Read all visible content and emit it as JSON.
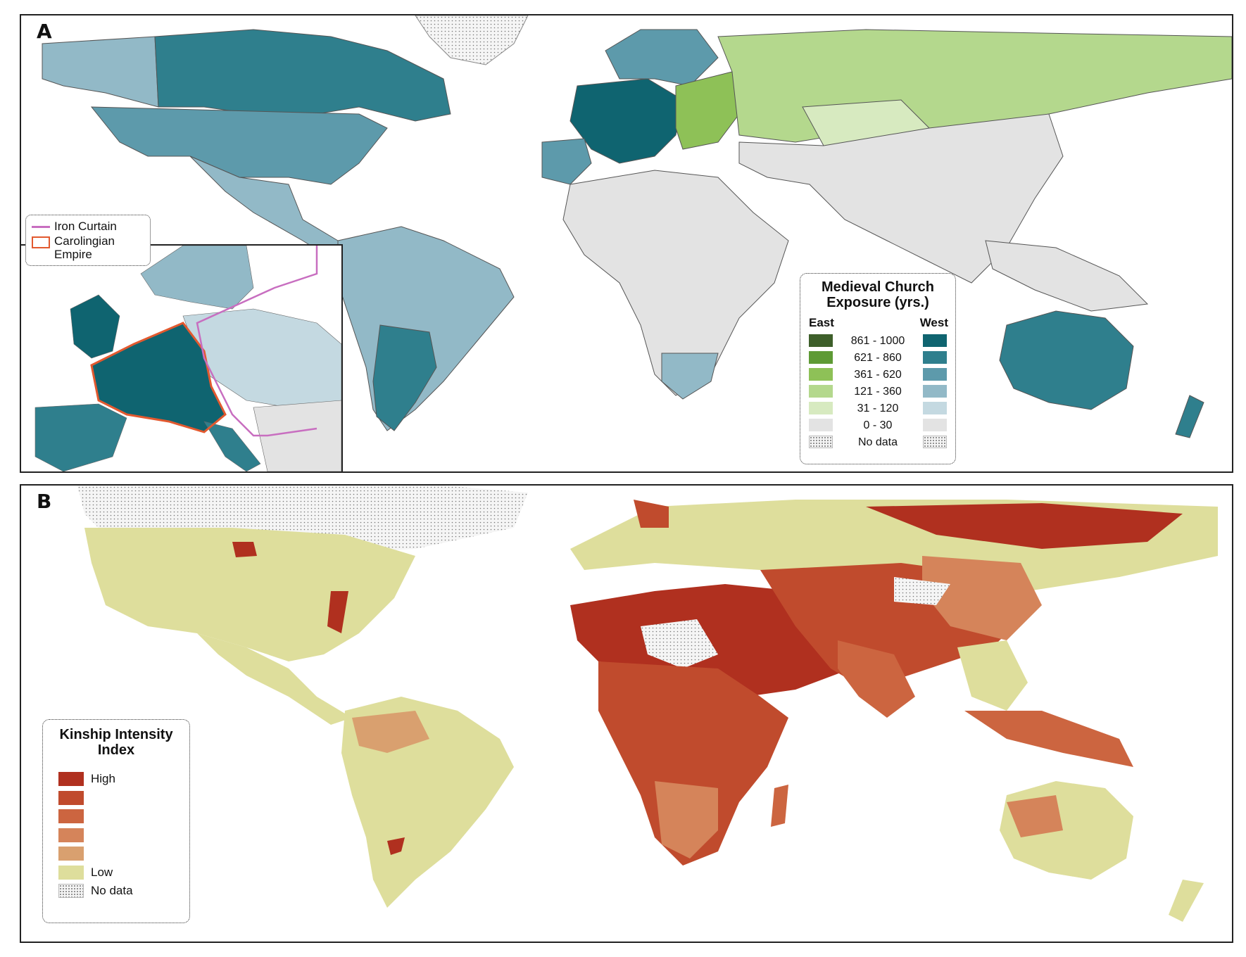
{
  "panelA": {
    "letter": "A",
    "inset_legend": {
      "iron_curtain": "Iron Curtain",
      "carolingian": "Carolingian Empire"
    },
    "legend": {
      "title_line1": "Medieval Church",
      "title_line2": "Exposure (yrs.)",
      "east_label": "East",
      "west_label": "West",
      "rows": [
        {
          "label": "861 - 1000",
          "east": "#3e5f2a",
          "west": "#0f6470"
        },
        {
          "label": "621 - 860",
          "east": "#5e9a35",
          "west": "#2f7f8d"
        },
        {
          "label": "361 - 620",
          "east": "#8ec157",
          "west": "#5d9aab"
        },
        {
          "label": "121 - 360",
          "east": "#b4d88d",
          "west": "#92b9c7"
        },
        {
          "label": "31 - 120",
          "east": "#d7eac0",
          "west": "#c4d9e1"
        },
        {
          "label": "0 - 30",
          "east": "#e3e3e3",
          "west": "#e3e3e3"
        },
        {
          "label": "No data",
          "east": "dots",
          "west": "dots"
        }
      ]
    },
    "colors": {
      "no_exposure": "#e3e3e3",
      "border": "#555555"
    }
  },
  "panelB": {
    "letter": "B",
    "legend": {
      "title_line1": "Kinship Intensity",
      "title_line2": "Index",
      "rows": [
        {
          "label": "High",
          "color": "#b0301f"
        },
        {
          "label": "",
          "color": "#c04b2d"
        },
        {
          "label": "",
          "color": "#cc6540"
        },
        {
          "label": "",
          "color": "#d5845a"
        },
        {
          "label": "",
          "color": "#d9a06f"
        },
        {
          "label": "Low",
          "color": "#dede9c"
        },
        {
          "label": "No data",
          "color": "dots"
        }
      ]
    }
  }
}
